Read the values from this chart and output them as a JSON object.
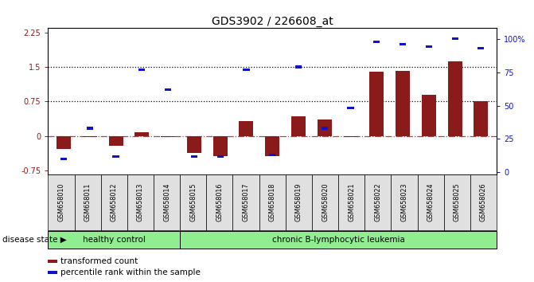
{
  "title": "GDS3902 / 226608_at",
  "samples": [
    "GSM658010",
    "GSM658011",
    "GSM658012",
    "GSM658013",
    "GSM658014",
    "GSM658015",
    "GSM658016",
    "GSM658017",
    "GSM658018",
    "GSM658019",
    "GSM658020",
    "GSM658021",
    "GSM658022",
    "GSM658023",
    "GSM658024",
    "GSM658025",
    "GSM658026"
  ],
  "bar_values": [
    -0.28,
    -0.02,
    -0.22,
    0.08,
    -0.02,
    -0.38,
    -0.45,
    0.32,
    -0.45,
    0.42,
    0.35,
    -0.02,
    1.4,
    1.42,
    0.9,
    1.62,
    0.75
  ],
  "blue_values_pct": [
    10,
    33,
    12,
    77,
    62,
    12,
    12,
    77,
    13,
    79,
    33,
    48,
    98,
    96,
    94,
    100,
    93
  ],
  "healthy_control_count": 5,
  "bar_color": "#8B1A1A",
  "blue_color": "#1111CC",
  "background_color": "#ffffff",
  "ylim_left": [
    -0.85,
    2.35
  ],
  "ylim_right": [
    -1.923,
    108
  ],
  "yticks_left": [
    -0.75,
    0.0,
    0.75,
    1.5,
    2.25
  ],
  "yticks_right": [
    0,
    25,
    50,
    75,
    100
  ],
  "hline1": 0.75,
  "hline2": 1.5,
  "hline0": 0.0,
  "healthy_label": "healthy control",
  "disease_label": "chronic B-lymphocytic leukemia",
  "disease_state_label": "disease state",
  "legend1": "transformed count",
  "legend2": "percentile rank within the sample",
  "title_fontsize": 10,
  "tick_fontsize": 7,
  "label_fontsize": 8
}
